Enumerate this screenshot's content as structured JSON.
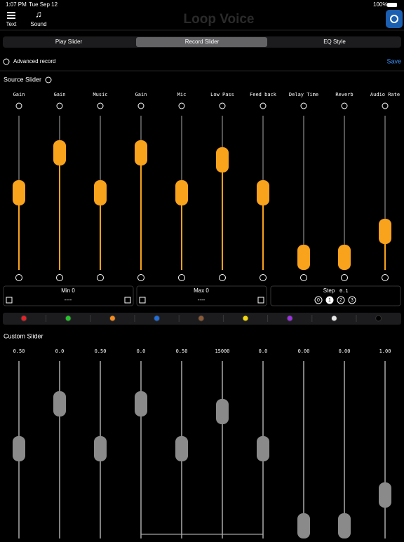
{
  "status_bar": {
    "time": "1:07 PM",
    "date": "Tue Sep 12",
    "battery": "100%"
  },
  "toolbar": {
    "buttons": [
      "Text",
      "Sound"
    ],
    "title": "Loop Voice"
  },
  "tabs": [
    "Play Slider",
    "Record Slider",
    "EQ Style"
  ],
  "advanced_record": "Advanced record",
  "save": "Save",
  "source_slider": {
    "title": "Source Slider",
    "labels": [
      "Gain",
      "Gain",
      "Music",
      "Gain",
      "Mic",
      "Low Pass",
      "Feed back",
      "Delay Time",
      "Reverb",
      "Audio Rate"
    ]
  },
  "controls": {
    "min": {
      "label": "Min 0",
      "value": "----"
    },
    "max": {
      "label": "Max 0",
      "value": "----"
    },
    "step": {
      "label": "Step",
      "value": "0.1",
      "options": [
        "0",
        "1",
        "2",
        "3"
      ]
    }
  },
  "custom_slider": {
    "title": "Custom Slider",
    "values": [
      "0.50",
      "0.0",
      "0.50",
      "0.0",
      "0.50",
      "15000",
      "0.0",
      "0.00",
      "0.00",
      "1.00"
    ]
  }
}
